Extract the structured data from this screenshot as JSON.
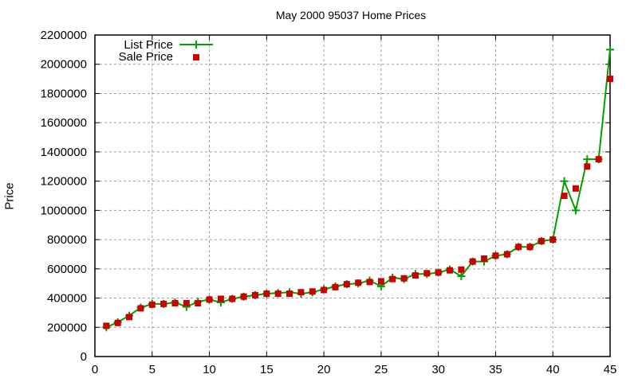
{
  "chart_data": {
    "type": "line",
    "title": "May 2000 95037 Home Prices",
    "xlabel": "",
    "ylabel": "Price",
    "xlim": [
      0,
      45
    ],
    "ylim": [
      0,
      2200000
    ],
    "x_ticks": [
      0,
      5,
      10,
      15,
      20,
      25,
      30,
      35,
      40,
      45
    ],
    "y_ticks": [
      0,
      200000,
      400000,
      600000,
      800000,
      1000000,
      1200000,
      1400000,
      1600000,
      1800000,
      2000000,
      2200000
    ],
    "grid": true,
    "legend_position": "top-left",
    "x": [
      1,
      2,
      3,
      4,
      5,
      6,
      7,
      8,
      9,
      10,
      11,
      12,
      13,
      14,
      15,
      16,
      17,
      18,
      19,
      20,
      21,
      22,
      23,
      24,
      25,
      26,
      27,
      28,
      29,
      30,
      31,
      32,
      33,
      34,
      35,
      36,
      37,
      38,
      39,
      40,
      41,
      42,
      43,
      44,
      45
    ],
    "series": [
      {
        "name": "List Price",
        "style": "lines+crosses",
        "color": "#00a000",
        "values": [
          200000,
          235000,
          280000,
          335000,
          360000,
          360000,
          370000,
          340000,
          375000,
          390000,
          370000,
          395000,
          410000,
          420000,
          430000,
          435000,
          440000,
          430000,
          440000,
          460000,
          480000,
          495000,
          500000,
          520000,
          480000,
          540000,
          530000,
          565000,
          565000,
          575000,
          595000,
          550000,
          650000,
          650000,
          690000,
          700000,
          750000,
          750000,
          790000,
          800000,
          1200000,
          1000000,
          1350000,
          1350000,
          2100000
        ]
      },
      {
        "name": "Sale Price",
        "style": "squares",
        "color": "#cc0000",
        "values": [
          210000,
          230000,
          270000,
          330000,
          355000,
          360000,
          365000,
          365000,
          365000,
          390000,
          395000,
          395000,
          410000,
          420000,
          430000,
          430000,
          430000,
          440000,
          445000,
          455000,
          475000,
          495000,
          505000,
          510000,
          515000,
          530000,
          535000,
          555000,
          570000,
          575000,
          590000,
          595000,
          650000,
          670000,
          690000,
          700000,
          750000,
          750000,
          790000,
          800000,
          1100000,
          1150000,
          1300000,
          1350000,
          1900000
        ]
      }
    ]
  },
  "colors": {
    "list": "#00a000",
    "sale": "#cc0000",
    "grid": "#a0a0a0",
    "axis": "#000000"
  }
}
